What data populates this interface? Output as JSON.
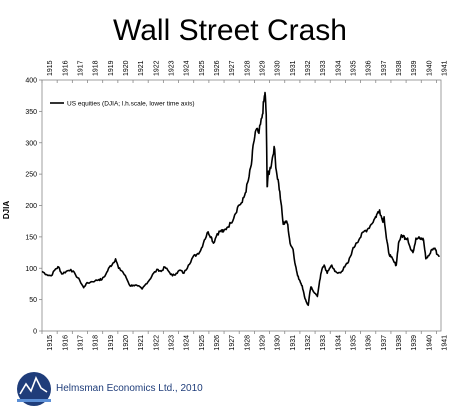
{
  "footer": {
    "company": "Helmsman Economics Ltd., 2010",
    "logo_colors": [
      "#1f3d7a",
      "#5b8fd6"
    ],
    "logo_name": "helmsman-logo"
  },
  "chart_data": {
    "type": "line",
    "title": "Wall Street Crash",
    "ylabel": "DJIA",
    "xlabel": "",
    "ylim": [
      0,
      400
    ],
    "yticks": [
      0,
      50,
      100,
      150,
      200,
      250,
      300,
      350,
      400
    ],
    "xlim": [
      1915,
      1941.3
    ],
    "xticks_top": [
      "1915",
      "1916",
      "1917",
      "1918",
      "1919",
      "1920",
      "1921",
      "1922",
      "1923",
      "1924",
      "1925",
      "1926",
      "1927",
      "1928",
      "1929",
      "1930",
      "1931",
      "1932",
      "1933",
      "1934",
      "1935",
      "1936",
      "1937",
      "1938",
      "1939",
      "1940",
      "1941"
    ],
    "xticks_bottom": [
      "1915",
      "1916",
      "1917",
      "1918",
      "1919",
      "1920",
      "1921",
      "1922",
      "1923",
      "1924",
      "1925",
      "1926",
      "1927",
      "1928",
      "1929",
      "1930",
      "1931",
      "1932",
      "1933",
      "1934",
      "1935",
      "1936",
      "1937",
      "1938",
      "1939",
      "1940",
      "1941"
    ],
    "grid": false,
    "legend_position": "top-left",
    "series": [
      {
        "name": "US equities (DJIA; l.h.scale, lower time axis)",
        "color": "#000000",
        "points": [
          [
            1915.0,
            95
          ],
          [
            1915.3,
            90
          ],
          [
            1915.6,
            88
          ],
          [
            1915.9,
            99
          ],
          [
            1916.1,
            102
          ],
          [
            1916.3,
            91
          ],
          [
            1916.6,
            95
          ],
          [
            1916.9,
            98
          ],
          [
            1917.2,
            90
          ],
          [
            1917.5,
            80
          ],
          [
            1917.75,
            69
          ],
          [
            1917.9,
            75
          ],
          [
            1918.2,
            78
          ],
          [
            1918.5,
            80
          ],
          [
            1918.75,
            82
          ],
          [
            1918.95,
            82
          ],
          [
            1919.2,
            90
          ],
          [
            1919.45,
            102
          ],
          [
            1919.65,
            107
          ],
          [
            1919.85,
            115
          ],
          [
            1920.05,
            100
          ],
          [
            1920.3,
            95
          ],
          [
            1920.55,
            85
          ],
          [
            1920.8,
            72
          ],
          [
            1921.0,
            73
          ],
          [
            1921.3,
            72
          ],
          [
            1921.6,
            67
          ],
          [
            1921.85,
            75
          ],
          [
            1922.1,
            82
          ],
          [
            1922.35,
            92
          ],
          [
            1922.65,
            98
          ],
          [
            1922.85,
            95
          ],
          [
            1923.1,
            102
          ],
          [
            1923.35,
            95
          ],
          [
            1923.6,
            88
          ],
          [
            1923.85,
            92
          ],
          [
            1924.1,
            97
          ],
          [
            1924.35,
            92
          ],
          [
            1924.65,
            105
          ],
          [
            1924.95,
            118
          ],
          [
            1925.2,
            122
          ],
          [
            1925.45,
            128
          ],
          [
            1925.7,
            145
          ],
          [
            1925.95,
            158
          ],
          [
            1926.15,
            150
          ],
          [
            1926.3,
            140
          ],
          [
            1926.55,
            155
          ],
          [
            1926.8,
            160
          ],
          [
            1926.95,
            158
          ],
          [
            1927.2,
            165
          ],
          [
            1927.45,
            172
          ],
          [
            1927.7,
            185
          ],
          [
            1927.95,
            200
          ],
          [
            1928.2,
            205
          ],
          [
            1928.4,
            220
          ],
          [
            1928.6,
            240
          ],
          [
            1928.8,
            265
          ],
          [
            1928.95,
            300
          ],
          [
            1929.1,
            320
          ],
          [
            1929.3,
            315
          ],
          [
            1929.5,
            340
          ],
          [
            1929.62,
            365
          ],
          [
            1929.7,
            380
          ],
          [
            1929.78,
            345
          ],
          [
            1929.84,
            230
          ],
          [
            1929.9,
            248
          ],
          [
            1930.0,
            255
          ],
          [
            1930.15,
            270
          ],
          [
            1930.3,
            294
          ],
          [
            1930.45,
            255
          ],
          [
            1930.6,
            235
          ],
          [
            1930.75,
            205
          ],
          [
            1930.9,
            170
          ],
          [
            1931.05,
            175
          ],
          [
            1931.2,
            170
          ],
          [
            1931.35,
            140
          ],
          [
            1931.55,
            130
          ],
          [
            1931.7,
            105
          ],
          [
            1931.85,
            88
          ],
          [
            1932.0,
            80
          ],
          [
            1932.15,
            72
          ],
          [
            1932.3,
            55
          ],
          [
            1932.45,
            45
          ],
          [
            1932.55,
            41
          ],
          [
            1932.62,
            55
          ],
          [
            1932.72,
            70
          ],
          [
            1932.85,
            65
          ],
          [
            1933.0,
            60
          ],
          [
            1933.15,
            55
          ],
          [
            1933.3,
            80
          ],
          [
            1933.45,
            98
          ],
          [
            1933.6,
            105
          ],
          [
            1933.8,
            92
          ],
          [
            1933.95,
            100
          ],
          [
            1934.1,
            105
          ],
          [
            1934.3,
            95
          ],
          [
            1934.5,
            92
          ],
          [
            1934.75,
            95
          ],
          [
            1934.95,
            102
          ],
          [
            1935.2,
            110
          ],
          [
            1935.45,
            128
          ],
          [
            1935.7,
            140
          ],
          [
            1935.95,
            148
          ],
          [
            1936.2,
            158
          ],
          [
            1936.45,
            162
          ],
          [
            1936.7,
            170
          ],
          [
            1936.95,
            180
          ],
          [
            1937.1,
            187
          ],
          [
            1937.25,
            193
          ],
          [
            1937.45,
            175
          ],
          [
            1937.55,
            182
          ],
          [
            1937.7,
            148
          ],
          [
            1937.85,
            125
          ],
          [
            1938.0,
            118
          ],
          [
            1938.2,
            110
          ],
          [
            1938.35,
            105
          ],
          [
            1938.5,
            140
          ],
          [
            1938.65,
            150
          ],
          [
            1938.8,
            152
          ],
          [
            1938.95,
            148
          ],
          [
            1939.1,
            148
          ],
          [
            1939.3,
            130
          ],
          [
            1939.45,
            125
          ],
          [
            1939.65,
            148
          ],
          [
            1939.85,
            150
          ],
          [
            1940.0,
            148
          ],
          [
            1940.15,
            145
          ],
          [
            1940.3,
            115
          ],
          [
            1940.5,
            120
          ],
          [
            1940.7,
            130
          ],
          [
            1940.9,
            132
          ],
          [
            1941.05,
            122
          ],
          [
            1941.2,
            120
          ]
        ]
      }
    ]
  }
}
